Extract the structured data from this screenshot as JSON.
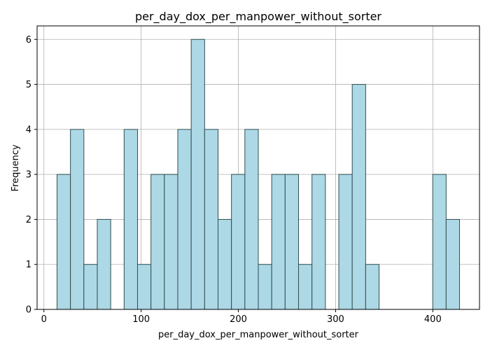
{
  "chart_data": {
    "type": "bar",
    "title": "per_day_dox_per_manpower_without_sorter",
    "xlabel": "per_day_dox_per_manpower_without_sorter",
    "ylabel": "Frequency",
    "xlim": [
      -7,
      448
    ],
    "ylim": [
      0,
      6.3
    ],
    "grid": true,
    "xticks": [
      0,
      100,
      200,
      300,
      400
    ],
    "yticks": [
      0,
      1,
      2,
      3,
      4,
      5,
      6
    ],
    "bar_color": "#add8e6",
    "edge_color": "#2f4f4f",
    "bin_edges": [
      13.5,
      27.3,
      41.1,
      54.9,
      68.7,
      82.5,
      96.3,
      110.1,
      123.9,
      137.7,
      151.5,
      165.3,
      179.1,
      192.9,
      206.7,
      220.5,
      234.3,
      248.1,
      261.9,
      275.7,
      289.5,
      303.3,
      317.1,
      330.9,
      344.7,
      358.5,
      372.3,
      386.1,
      399.9,
      413.7,
      427.5
    ],
    "values": [
      3,
      4,
      1,
      2,
      0,
      4,
      1,
      3,
      3,
      4,
      6,
      4,
      2,
      3,
      4,
      1,
      3,
      3,
      1,
      3,
      0,
      3,
      5,
      1,
      0,
      0,
      0,
      0,
      3,
      2
    ]
  }
}
